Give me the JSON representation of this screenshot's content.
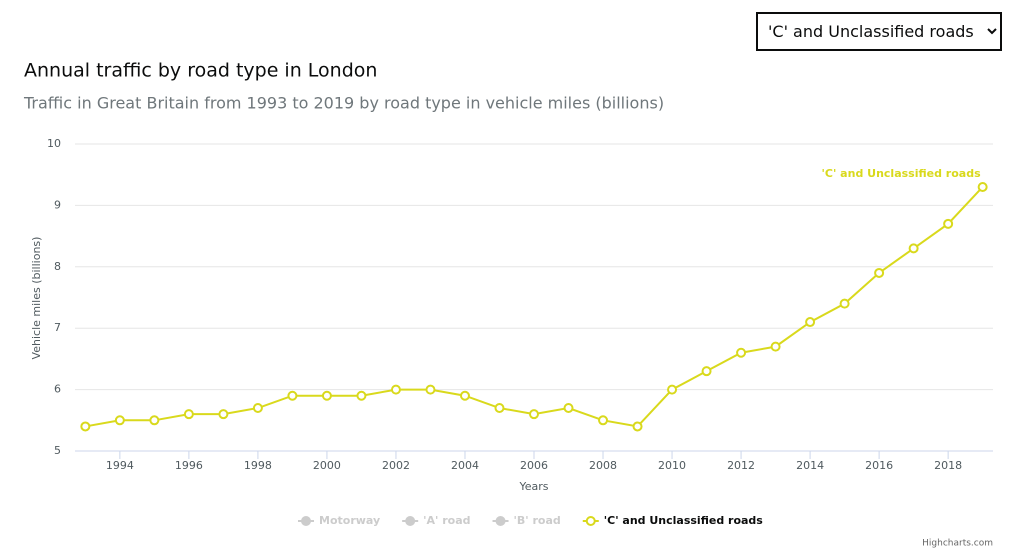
{
  "dropdown": "'C' and Unclassified roads",
  "chart_data": {
    "type": "line",
    "title": "Annual traffic by road type in London",
    "subtitle": "Traffic in Great Britain from 1993 to 2019 by road type in vehicle miles (billions)",
    "y_label": "Vehicle miles (billions)",
    "x_label": "Years",
    "x": [
      1993,
      1994,
      1995,
      1996,
      1997,
      1998,
      1999,
      2000,
      2001,
      2002,
      2003,
      2004,
      2005,
      2006,
      2007,
      2008,
      2009,
      2010,
      2011,
      2012,
      2013,
      2014,
      2015,
      2016,
      2017,
      2018,
      2019
    ],
    "series": [
      {
        "name": "Motorway",
        "color": "#cccccc",
        "visible": false
      },
      {
        "name": "'A' road",
        "color": "#cccccc",
        "visible": false
      },
      {
        "name": "'B' road",
        "color": "#cccccc",
        "visible": false
      },
      {
        "name": "'C' and Unclassified roads",
        "color": "#d9d91c",
        "visible": true,
        "values": [
          5.4,
          5.5,
          5.5,
          5.6,
          5.6,
          5.7,
          5.9,
          5.9,
          5.9,
          6.0,
          6.0,
          5.9,
          5.7,
          5.6,
          5.7,
          5.5,
          5.4,
          6.0,
          6.3,
          6.6,
          6.7,
          7.1,
          7.4,
          7.9,
          8.3,
          8.7,
          9.3
        ]
      }
    ],
    "xlim": [
      1992.7,
      2019.3
    ],
    "xticks": [
      1994,
      1996,
      1998,
      2000,
      2002,
      2004,
      2006,
      2008,
      2010,
      2012,
      2014,
      2016,
      2018
    ],
    "ylim": [
      5,
      10
    ],
    "yticks": [
      5,
      6,
      7,
      8,
      9,
      10
    ],
    "grid": true,
    "credits": "Highcharts.com"
  }
}
